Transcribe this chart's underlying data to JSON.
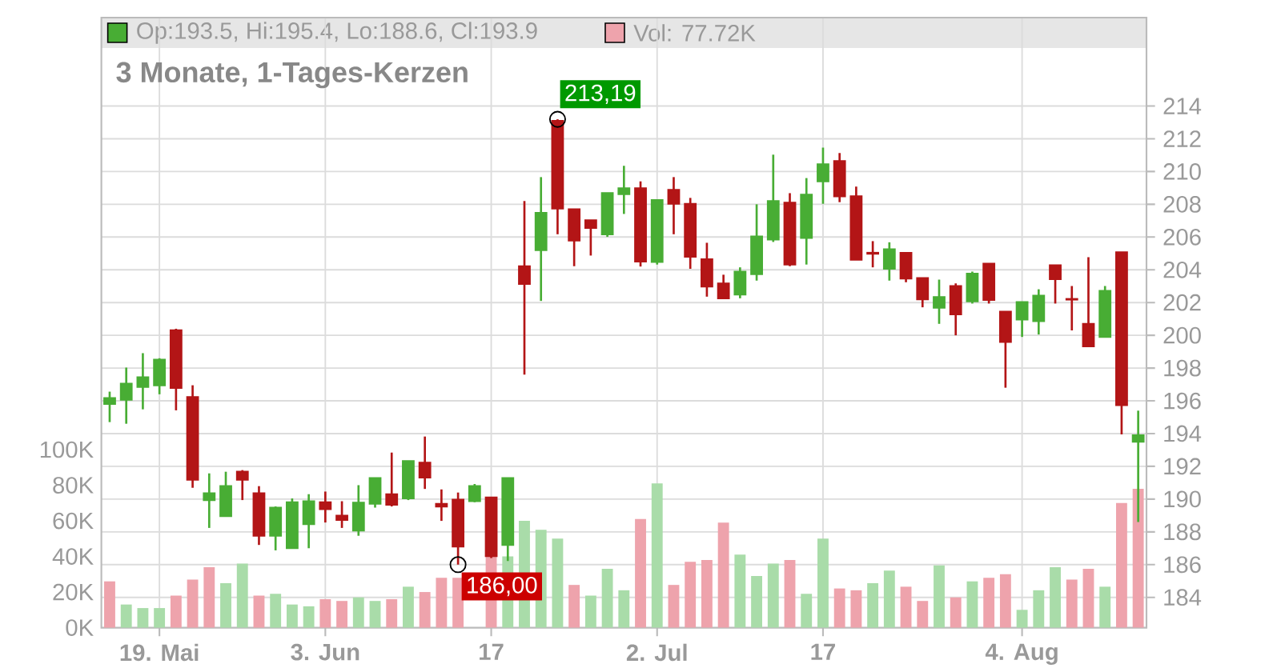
{
  "chart_data": {
    "type": "candlestick",
    "title": "3 Monate, 1-Tages-Kerzen",
    "categories": [
      null,
      null,
      null,
      "19. Mai",
      null,
      null,
      null,
      null,
      null,
      null,
      null,
      null,
      null,
      "3. Jun",
      null,
      null,
      null,
      null,
      null,
      null,
      null,
      null,
      null,
      "17",
      null,
      null,
      null,
      null,
      null,
      null,
      null,
      null,
      null,
      "2. Jul",
      null,
      null,
      null,
      null,
      null,
      null,
      null,
      null,
      null,
      "17",
      null,
      null,
      null,
      null,
      null,
      null,
      null,
      null,
      null,
      null,
      null,
      "4. Aug",
      null,
      null,
      null,
      null,
      null,
      null,
      null
    ],
    "series": [
      {
        "name": "Op:193.5, Hi:195.4, Lo:188.6, Cl:193.9",
        "color": "#48ad34",
        "ohlc": [
          [
            195.81,
            196.56,
            194.7,
            196.17
          ],
          [
            196.07,
            198.03,
            194.6,
            197.05
          ],
          [
            196.85,
            198.91,
            195.48,
            197.44
          ],
          [
            196.95,
            198.6,
            196.4,
            198.51
          ],
          [
            200.31,
            200.4,
            195.42,
            196.79
          ],
          [
            196.23,
            196.95,
            190.69,
            191.18
          ],
          [
            189.94,
            191.57,
            188.24,
            190.36
          ],
          [
            188.96,
            191.67,
            188.96,
            190.79
          ],
          [
            191.67,
            191.77,
            189.94,
            191.18
          ],
          [
            190.36,
            190.79,
            187.2,
            187.76
          ],
          [
            187.76,
            189.55,
            186.87,
            189.48
          ],
          [
            187.0,
            190.04,
            187.0,
            189.81
          ],
          [
            188.47,
            190.3,
            187.0,
            189.87
          ],
          [
            189.81,
            190.46,
            188.57,
            189.39
          ],
          [
            188.99,
            189.87,
            188.24,
            188.73
          ],
          [
            188.08,
            190.85,
            187.76,
            189.78
          ],
          [
            189.71,
            191.28,
            189.48,
            191.28
          ],
          [
            190.3,
            192.84,
            189.55,
            189.65
          ],
          [
            190.04,
            192.32,
            189.94,
            192.32
          ],
          [
            192.22,
            193.82,
            190.62,
            191.31
          ],
          [
            189.71,
            190.59,
            188.67,
            189.55
          ],
          [
            189.97,
            190.4,
            186.0,
            187.1
          ],
          [
            189.87,
            190.92,
            189.81,
            190.79
          ],
          [
            190.1,
            190.1,
            186.4,
            186.52
          ],
          [
            187.2,
            191.28,
            186.22,
            191.28
          ],
          [
            204.22,
            208.2,
            197.6,
            203.14
          ],
          [
            205.2,
            209.66,
            202.1,
            207.48
          ],
          [
            213.1,
            213.19,
            206.17,
            207.74
          ],
          [
            207.7,
            207.7,
            204.22,
            205.78
          ],
          [
            207.02,
            207.02,
            204.87,
            206.56
          ],
          [
            206.17,
            208.68,
            206.01,
            208.68
          ],
          [
            208.62,
            210.35,
            207.41,
            208.98
          ],
          [
            208.98,
            209.4,
            204.2,
            204.5
          ],
          [
            204.48,
            208.26,
            204.32,
            208.26
          ],
          [
            208.88,
            209.66,
            206.17,
            208.03
          ],
          [
            208.03,
            208.39,
            204.06,
            204.8
          ],
          [
            204.64,
            205.65,
            202.36,
            202.98
          ],
          [
            203.17,
            203.7,
            202.26,
            202.26
          ],
          [
            202.49,
            204.15,
            202.26,
            203.89
          ],
          [
            203.73,
            208.0,
            203.34,
            206.04
          ],
          [
            205.85,
            211.03,
            205.7,
            208.2
          ],
          [
            208.1,
            208.68,
            204.22,
            204.32
          ],
          [
            205.95,
            209.6,
            204.32,
            208.59
          ],
          [
            209.4,
            211.46,
            208.03,
            210.45
          ],
          [
            210.64,
            211.13,
            208.13,
            208.49
          ],
          [
            208.49,
            209.08,
            204.6,
            204.61
          ],
          [
            205.04,
            205.75,
            204.15,
            204.98
          ],
          [
            204.06,
            205.68,
            203.34,
            205.26
          ],
          [
            205.03,
            205.03,
            203.24,
            203.47
          ],
          [
            203.5,
            203.5,
            201.71,
            202.2
          ],
          [
            201.68,
            203.4,
            200.7,
            202.33
          ],
          [
            203.01,
            203.17,
            200.0,
            201.28
          ],
          [
            202.07,
            203.89,
            201.94,
            203.76
          ],
          [
            204.38,
            204.38,
            201.94,
            202.16
          ],
          [
            201.45,
            201.45,
            196.8,
            199.6
          ],
          [
            200.96,
            202.03,
            199.9,
            202.03
          ],
          [
            200.86,
            202.81,
            200.05,
            202.42
          ],
          [
            204.28,
            204.28,
            201.94,
            203.43
          ],
          [
            202.22,
            203.01,
            200.3,
            202.18
          ],
          [
            200.7,
            204.77,
            199.33,
            199.33
          ],
          [
            199.9,
            203.01,
            199.9,
            202.72
          ],
          [
            205.07,
            205.07,
            193.95,
            195.74
          ],
          [
            193.5,
            195.4,
            188.6,
            193.9
          ]
        ],
        "colors": [
          "#48ad34",
          "#48ad34",
          "#48ad34",
          "#48ad34",
          "#b31516",
          "#b31516",
          "#48ad34",
          "#48ad34",
          "#b31516",
          "#b31516",
          "#48ad34",
          "#48ad34",
          "#48ad34",
          "#b31516",
          "#b31516",
          "#48ad34",
          "#48ad34",
          "#b31516",
          "#48ad34",
          "#b31516",
          "#b31516",
          "#b31516",
          "#48ad34",
          "#b31516",
          "#48ad34",
          "#b31516",
          "#48ad34",
          "#b31516",
          "#b31516",
          "#b31516",
          "#48ad34",
          "#48ad34",
          "#b31516",
          "#48ad34",
          "#b31516",
          "#b31516",
          "#b31516",
          "#b31516",
          "#48ad34",
          "#48ad34",
          "#48ad34",
          "#b31516",
          "#48ad34",
          "#48ad34",
          "#b31516",
          "#b31516",
          "#b31516",
          "#48ad34",
          "#b31516",
          "#b31516",
          "#48ad34",
          "#b31516",
          "#48ad34",
          "#b31516",
          "#b31516",
          "#48ad34",
          "#48ad34",
          "#b31516",
          "#b31516",
          "#b31516",
          "#48ad34",
          "#b31516",
          "#48ad34"
        ]
      },
      {
        "type": "bar",
        "axis": "y2",
        "name": "Vol: 77.72K",
        "color": "#eea3ac",
        "values": [
          26,
          13,
          11,
          11,
          18,
          27,
          34,
          25,
          36,
          18,
          19,
          13,
          12,
          16,
          15,
          17,
          15,
          16,
          23,
          20,
          28,
          28,
          null,
          40,
          40,
          60,
          55,
          50,
          24,
          18,
          33,
          21,
          61,
          81,
          24,
          37,
          38,
          59,
          41,
          29,
          36,
          38,
          19,
          50,
          22,
          21,
          25,
          32,
          23,
          15,
          35,
          17,
          26,
          28,
          30,
          10,
          21,
          34,
          27,
          33,
          23,
          70,
          78
        ],
        "colors": [
          "#eea3ac",
          "#a9dca9",
          "#a9dca9",
          "#a9dca9",
          "#eea3ac",
          "#eea3ac",
          "#eea3ac",
          "#a9dca9",
          "#a9dca9",
          "#eea3ac",
          "#a9dca9",
          "#a9dca9",
          "#a9dca9",
          "#eea3ac",
          "#eea3ac",
          "#a9dca9",
          "#a9dca9",
          "#eea3ac",
          "#a9dca9",
          "#eea3ac",
          "#eea3ac",
          "#eea3ac",
          "#a9dca9",
          "#eea3ac",
          "#a9dca9",
          "#a9dca9",
          "#a9dca9",
          "#a9dca9",
          "#eea3ac",
          "#a9dca9",
          "#a9dca9",
          "#a9dca9",
          "#eea3ac",
          "#a9dca9",
          "#eea3ac",
          "#eea3ac",
          "#eea3ac",
          "#eea3ac",
          "#a9dca9",
          "#a9dca9",
          "#a9dca9",
          "#eea3ac",
          "#a9dca9",
          "#a9dca9",
          "#eea3ac",
          "#eea3ac",
          "#a9dca9",
          "#a9dca9",
          "#eea3ac",
          "#eea3ac",
          "#a9dca9",
          "#eea3ac",
          "#a9dca9",
          "#eea3ac",
          "#eea3ac",
          "#a9dca9",
          "#a9dca9",
          "#a9dca9",
          "#eea3ac",
          "#eea3ac",
          "#a9dca9",
          "#eea3ac",
          "#eea3ac"
        ]
      }
    ],
    "ylim": [
      182.15,
      219.4
    ],
    "yticks": [
      184,
      186,
      188,
      190,
      192,
      194,
      196,
      198,
      200,
      202,
      204,
      206,
      208,
      210,
      212,
      214
    ],
    "y2lim": [
      0,
      342.6
    ],
    "y2ticks": [
      {
        "value": 0,
        "label": "0K"
      },
      {
        "value": 20,
        "label": "20K"
      },
      {
        "value": 40,
        "label": "40K"
      },
      {
        "value": 60,
        "label": "60K"
      },
      {
        "value": 80,
        "label": "80K"
      },
      {
        "value": 100,
        "label": "100K"
      }
    ],
    "grid": true,
    "legend": "top",
    "annotations": [
      "213,19",
      "186,00"
    ]
  }
}
